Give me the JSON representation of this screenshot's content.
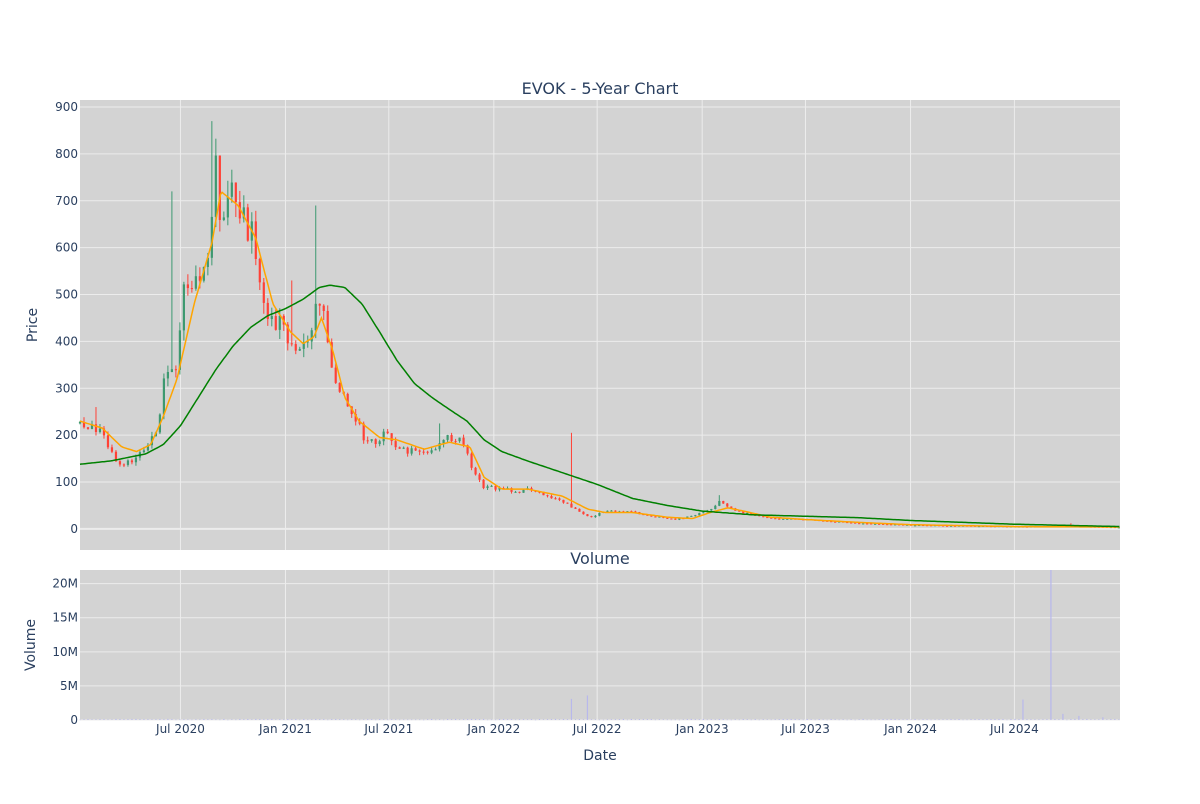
{
  "chart_data": [
    {
      "type": "candlestick",
      "title": "EVOK - 5-Year Chart",
      "xlabel": "",
      "ylabel": "Price",
      "xlim": [
        "2020-01-07",
        "2025-01-02"
      ],
      "ylim": [
        -45,
        915
      ],
      "y_ticks": [
        0,
        100,
        200,
        300,
        400,
        500,
        600,
        700,
        800,
        900
      ],
      "x_ticks": [
        "2020-07-01",
        "2021-01-01",
        "2021-07-01",
        "2022-01-01",
        "2022-07-01",
        "2023-01-01",
        "2023-07-01",
        "2024-01-01",
        "2024-07-01"
      ],
      "grid": true,
      "colors": {
        "up": "#3d9970",
        "down": "#ff4136",
        "ma_short": "#ffa500",
        "ma_long": "#008000",
        "plot_bg": "#d3d3d3",
        "grid": "#ececec",
        "text": "#2a3f5f"
      },
      "price_anchors": [
        [
          "2020-01-07",
          225
        ],
        [
          "2020-02-10",
          210
        ],
        [
          "2020-03-20",
          125
        ],
        [
          "2020-04-15",
          160
        ],
        [
          "2020-05-20",
          200
        ],
        [
          "2020-06-05",
          350
        ],
        [
          "2020-06-25",
          330
        ],
        [
          "2020-07-05",
          520
        ],
        [
          "2020-07-20",
          540
        ],
        [
          "2020-08-05",
          520
        ],
        [
          "2020-08-20",
          620
        ],
        [
          "2020-09-01",
          780
        ],
        [
          "2020-09-10",
          650
        ],
        [
          "2020-09-25",
          760
        ],
        [
          "2020-10-10",
          700
        ],
        [
          "2020-10-25",
          650
        ],
        [
          "2020-11-05",
          620
        ],
        [
          "2020-11-20",
          520
        ],
        [
          "2020-12-05",
          440
        ],
        [
          "2020-12-25",
          440
        ],
        [
          "2021-01-10",
          380
        ],
        [
          "2021-01-25",
          400
        ],
        [
          "2021-02-10",
          380
        ],
        [
          "2021-02-25",
          520
        ],
        [
          "2021-03-10",
          440
        ],
        [
          "2021-03-25",
          320
        ],
        [
          "2021-04-15",
          270
        ],
        [
          "2021-05-05",
          230
        ],
        [
          "2021-05-25",
          180
        ],
        [
          "2021-06-25",
          200
        ],
        [
          "2021-07-25",
          170
        ],
        [
          "2021-08-25",
          160
        ],
        [
          "2021-09-25",
          180
        ],
        [
          "2021-10-15",
          200
        ],
        [
          "2021-11-10",
          180
        ],
        [
          "2021-11-25",
          120
        ],
        [
          "2021-12-15",
          90
        ],
        [
          "2022-01-15",
          85
        ],
        [
          "2022-02-15",
          80
        ],
        [
          "2022-03-01",
          90
        ],
        [
          "2022-04-01",
          70
        ],
        [
          "2022-05-01",
          60
        ],
        [
          "2022-06-01",
          35
        ],
        [
          "2022-06-20",
          25
        ],
        [
          "2022-07-15",
          38
        ],
        [
          "2022-08-25",
          38
        ],
        [
          "2022-10-01",
          28
        ],
        [
          "2022-11-15",
          20
        ],
        [
          "2022-12-15",
          28
        ],
        [
          "2023-01-15",
          40
        ],
        [
          "2023-02-01",
          60
        ],
        [
          "2023-03-01",
          38
        ],
        [
          "2023-04-01",
          30
        ],
        [
          "2023-05-01",
          22
        ],
        [
          "2023-07-01",
          20
        ],
        [
          "2023-10-01",
          12
        ],
        [
          "2024-01-01",
          8
        ],
        [
          "2024-07-01",
          5
        ],
        [
          "2024-10-01",
          6
        ],
        [
          "2025-01-02",
          3
        ]
      ],
      "price_spikes": [
        [
          "2020-02-05",
          260
        ],
        [
          "2020-06-15",
          720
        ],
        [
          "2020-08-25",
          870
        ],
        [
          "2021-01-10",
          530
        ],
        [
          "2021-02-20",
          690
        ],
        [
          "2021-09-25",
          225
        ],
        [
          "2022-05-20",
          205
        ],
        [
          "2023-02-01",
          72
        ],
        [
          "2024-10-05",
          12
        ]
      ],
      "ma_short_anchors": [
        [
          "2020-01-07",
          230
        ],
        [
          "2020-02-15",
          215
        ],
        [
          "2020-03-20",
          175
        ],
        [
          "2020-04-15",
          165
        ],
        [
          "2020-05-10",
          180
        ],
        [
          "2020-06-01",
          240
        ],
        [
          "2020-06-25",
          320
        ],
        [
          "2020-07-25",
          480
        ],
        [
          "2020-08-25",
          610
        ],
        [
          "2020-09-10",
          720
        ],
        [
          "2020-10-10",
          690
        ],
        [
          "2020-11-10",
          620
        ],
        [
          "2020-12-10",
          480
        ],
        [
          "2021-01-10",
          420
        ],
        [
          "2021-02-01",
          395
        ],
        [
          "2021-02-20",
          410
        ],
        [
          "2021-03-05",
          450
        ],
        [
          "2021-03-25",
          380
        ],
        [
          "2021-04-15",
          280
        ],
        [
          "2021-05-10",
          230
        ],
        [
          "2021-06-15",
          195
        ],
        [
          "2021-07-15",
          190
        ],
        [
          "2021-09-01",
          170
        ],
        [
          "2021-10-15",
          185
        ],
        [
          "2021-11-20",
          175
        ],
        [
          "2021-12-15",
          110
        ],
        [
          "2022-01-15",
          85
        ],
        [
          "2022-03-01",
          85
        ],
        [
          "2022-05-01",
          70
        ],
        [
          "2022-06-15",
          42
        ],
        [
          "2022-07-15",
          35
        ],
        [
          "2022-09-01",
          35
        ],
        [
          "2022-11-01",
          25
        ],
        [
          "2022-12-15",
          22
        ],
        [
          "2023-01-15",
          35
        ],
        [
          "2023-02-15",
          45
        ],
        [
          "2023-03-15",
          38
        ],
        [
          "2023-05-01",
          25
        ],
        [
          "2023-07-01",
          20
        ],
        [
          "2023-10-01",
          14
        ],
        [
          "2024-01-01",
          9
        ],
        [
          "2024-07-01",
          5
        ],
        [
          "2025-01-02",
          4
        ]
      ],
      "ma_long_anchors": [
        [
          "2020-01-07",
          138
        ],
        [
          "2020-03-01",
          145
        ],
        [
          "2020-05-01",
          160
        ],
        [
          "2020-06-01",
          180
        ],
        [
          "2020-07-01",
          220
        ],
        [
          "2020-08-01",
          280
        ],
        [
          "2020-09-01",
          340
        ],
        [
          "2020-10-01",
          390
        ],
        [
          "2020-11-01",
          430
        ],
        [
          "2020-12-01",
          455
        ],
        [
          "2021-01-01",
          470
        ],
        [
          "2021-02-01",
          490
        ],
        [
          "2021-03-01",
          515
        ],
        [
          "2021-03-20",
          520
        ],
        [
          "2021-04-15",
          515
        ],
        [
          "2021-05-15",
          480
        ],
        [
          "2021-06-15",
          420
        ],
        [
          "2021-07-15",
          360
        ],
        [
          "2021-08-15",
          310
        ],
        [
          "2021-09-15",
          280
        ],
        [
          "2021-10-15",
          255
        ],
        [
          "2021-11-15",
          230
        ],
        [
          "2021-12-15",
          190
        ],
        [
          "2022-01-15",
          165
        ],
        [
          "2022-03-01",
          145
        ],
        [
          "2022-05-01",
          120
        ],
        [
          "2022-07-01",
          95
        ],
        [
          "2022-09-01",
          65
        ],
        [
          "2022-11-01",
          50
        ],
        [
          "2023-01-01",
          38
        ],
        [
          "2023-04-01",
          30
        ],
        [
          "2023-07-01",
          27
        ],
        [
          "2023-10-01",
          24
        ],
        [
          "2024-01-01",
          18
        ],
        [
          "2024-07-01",
          10
        ],
        [
          "2025-01-02",
          5
        ]
      ]
    },
    {
      "type": "bar",
      "title": "Volume",
      "xlabel": "Date",
      "ylabel": "Volume",
      "xlim": [
        "2020-01-07",
        "2025-01-02"
      ],
      "ylim": [
        0,
        22000000
      ],
      "y_ticks": [
        0,
        5000000,
        10000000,
        15000000,
        20000000
      ],
      "y_tick_labels": [
        "0",
        "5M",
        "10M",
        "15M",
        "20M"
      ],
      "x_ticks": [
        "2020-07-01",
        "2021-01-01",
        "2021-07-01",
        "2022-01-01",
        "2022-07-01",
        "2023-01-01",
        "2023-07-01",
        "2024-01-01",
        "2024-07-01"
      ],
      "x_tick_labels": [
        "Jul 2020",
        "Jan 2021",
        "Jul 2021",
        "Jan 2022",
        "Jul 2022",
        "Jan 2023",
        "Jul 2023",
        "Jan 2024",
        "Jul 2024"
      ],
      "grid": true,
      "bar_color": "#b8b8ec",
      "volume_spikes": [
        [
          "2022-05-20",
          3100000
        ],
        [
          "2022-06-15",
          3600000
        ],
        [
          "2024-07-15",
          3000000
        ],
        [
          "2024-09-05",
          22000000
        ],
        [
          "2024-09-25",
          900000
        ],
        [
          "2024-10-20",
          600000
        ],
        [
          "2024-12-05",
          400000
        ]
      ]
    }
  ]
}
